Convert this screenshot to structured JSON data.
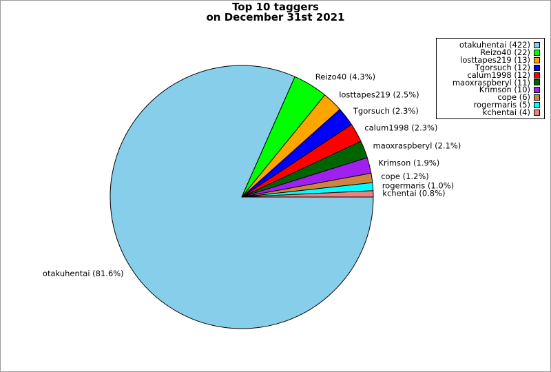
{
  "chart_data": {
    "type": "pie",
    "title": [
      "Top 10 taggers",
      "on December 31st 2021"
    ],
    "slices": [
      {
        "name": "otakuhentai",
        "value": 422,
        "percent_label": "otakuhentai (81.6%)",
        "legend": "otakuhentai (422)",
        "color": "#87ceeb"
      },
      {
        "name": "Reizo40",
        "value": 22,
        "percent_label": "Reizo40 (4.3%)",
        "legend": "Reizo40 (22)",
        "color": "#00ff00"
      },
      {
        "name": "losttapes219",
        "value": 13,
        "percent_label": "losttapes219 (2.5%)",
        "legend": "losttapes219 (13)",
        "color": "#ffa500"
      },
      {
        "name": "Tgorsuch",
        "value": 12,
        "percent_label": "Tgorsuch (2.3%)",
        "legend": "Tgorsuch (12)",
        "color": "#0000ff"
      },
      {
        "name": "calum1998",
        "value": 12,
        "percent_label": "calum1998 (2.3%)",
        "legend": "calum1998 (12)",
        "color": "#ff0000"
      },
      {
        "name": "maoxraspberyl",
        "value": 11,
        "percent_label": "maoxraspberyl (2.1%)",
        "legend": "maoxraspberyl (11)",
        "color": "#006400"
      },
      {
        "name": "Krimson",
        "value": 10,
        "percent_label": "Krimson (1.9%)",
        "legend": "Krimson (10)",
        "color": "#a020f0"
      },
      {
        "name": "cope",
        "value": 6,
        "percent_label": "cope (1.2%)",
        "legend": "cope (6)",
        "color": "#cd853f"
      },
      {
        "name": "rogermaris",
        "value": 5,
        "percent_label": "rogermaris (1.0%)",
        "legend": "rogermaris (5)",
        "color": "#00ffff"
      },
      {
        "name": "kchentai",
        "value": 4,
        "percent_label": "kchentai (0.8%)",
        "legend": "kchentai (4)",
        "color": "#f08080"
      }
    ],
    "legend_position": "top-right"
  }
}
